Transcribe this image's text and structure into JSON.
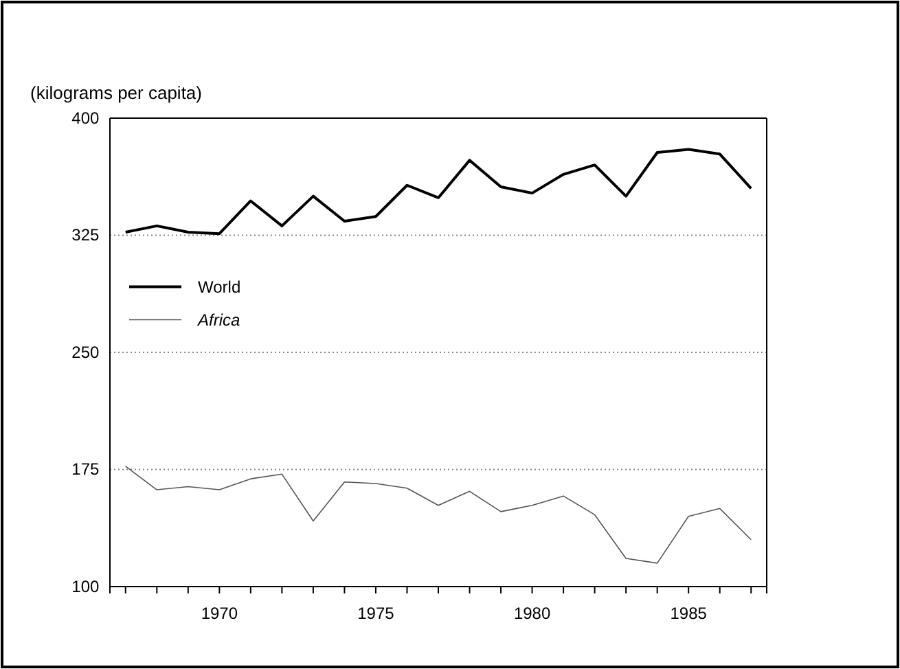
{
  "chart_data": {
    "type": "line",
    "ylabel": "(kilograms per capita)",
    "x": [
      1967,
      1968,
      1969,
      1970,
      1971,
      1972,
      1973,
      1974,
      1975,
      1976,
      1977,
      1978,
      1979,
      1980,
      1981,
      1982,
      1983,
      1984,
      1985,
      1986,
      1987
    ],
    "series": [
      {
        "name": "World",
        "color": "#000000",
        "values": [
          327,
          331,
          327,
          326,
          347,
          331,
          350,
          334,
          337,
          357,
          349,
          373,
          356,
          352,
          364,
          370,
          350,
          378,
          380,
          377,
          355
        ]
      },
      {
        "name": "Africa",
        "color": "#555555",
        "values": [
          177,
          162,
          164,
          162,
          169,
          172,
          142,
          167,
          166,
          163,
          152,
          161,
          148,
          152,
          158,
          146,
          118,
          115,
          145,
          150,
          130
        ]
      }
    ],
    "xlim": [
      1966.5,
      1987.5
    ],
    "xticks": [
      {
        "value": 1967,
        "label": null
      },
      {
        "value": 1968,
        "label": null
      },
      {
        "value": 1969,
        "label": null
      },
      1970,
      {
        "value": 1971,
        "label": null
      },
      {
        "value": 1972,
        "label": null
      },
      {
        "value": 1973,
        "label": null
      },
      {
        "value": 1974,
        "label": null
      },
      1975,
      {
        "value": 1976,
        "label": null
      },
      {
        "value": 1977,
        "label": null
      },
      {
        "value": 1978,
        "label": null
      },
      {
        "value": 1979,
        "label": null
      },
      1980,
      {
        "value": 1981,
        "label": null
      },
      {
        "value": 1982,
        "label": null
      },
      {
        "value": 1983,
        "label": null
      },
      {
        "value": 1984,
        "label": null
      },
      1985,
      {
        "value": 1986,
        "label": null
      },
      {
        "value": 1987,
        "label": null
      }
    ],
    "ylim": [
      100,
      400
    ],
    "yticks": [
      100,
      175,
      250,
      325,
      400
    ],
    "grid": "y",
    "legend": "center left",
    "marker": "none",
    "line_style": "solid"
  }
}
